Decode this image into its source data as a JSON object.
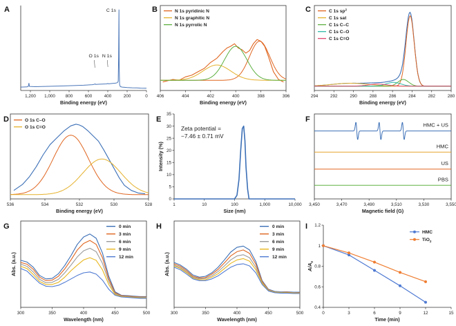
{
  "chart_data": [
    {
      "id": "A",
      "type": "line",
      "panel_label": "A",
      "xlabel": "Binding energy (eV)",
      "ylabel": "",
      "xlim": [
        1300,
        0
      ],
      "xticks": [
        "1,200",
        "1,000",
        "800",
        "600",
        "400",
        "200",
        "0"
      ],
      "annotations": [
        "C 1s",
        "O 1s",
        "N 1s"
      ],
      "series": [
        {
          "name": "survey",
          "color": "#4a76b8",
          "x": [
            1300,
            1235,
            1222,
            1215,
            1210,
            1150,
            1050,
            950,
            850,
            750,
            650,
            560,
            540,
            531,
            525,
            500,
            420,
            405,
            399,
            392,
            360,
            320,
            300,
            292,
            288,
            285,
            284,
            282,
            278,
            270,
            250,
            200,
            150,
            100,
            60,
            20,
            0
          ],
          "y": [
            0.04,
            0.042,
            0.048,
            0.085,
            0.048,
            0.045,
            0.048,
            0.05,
            0.054,
            0.058,
            0.062,
            0.068,
            0.072,
            0.078,
            0.071,
            0.073,
            0.077,
            0.079,
            0.083,
            0.078,
            0.082,
            0.086,
            0.092,
            0.11,
            0.4,
            0.88,
            0.95,
            0.3,
            0.07,
            0.045,
            0.04,
            0.035,
            0.032,
            0.03,
            0.028,
            0.027,
            0.026
          ]
        }
      ]
    },
    {
      "id": "B",
      "type": "line",
      "panel_label": "B",
      "xlabel": "Binding energy (eV)",
      "ylabel": "",
      "xlim": [
        406,
        396
      ],
      "xticks": [
        "406",
        "404",
        "402",
        "400",
        "398",
        "396"
      ],
      "legend": [
        "N 1s pyridinic N",
        "N 1s graphitic N",
        "N 1s pyrrolic N"
      ],
      "background": 0.12,
      "envelope_x": [
        405.8,
        405,
        404.5,
        404,
        403.5,
        403,
        402.5,
        402,
        401.5,
        401,
        400.7,
        400.4,
        400.1,
        399.8,
        399.5,
        399.2,
        398.9,
        398.6,
        398.3,
        398,
        397.7,
        397.4,
        397,
        396.6,
        396.2
      ],
      "envelope_y": [
        0.1,
        0.13,
        0.12,
        0.16,
        0.18,
        0.22,
        0.26,
        0.33,
        0.38,
        0.46,
        0.5,
        0.52,
        0.55,
        0.5,
        0.48,
        0.44,
        0.47,
        0.55,
        0.6,
        0.58,
        0.52,
        0.4,
        0.22,
        0.13,
        0.1
      ],
      "series": [
        {
          "name": "N 1s pyridinic N",
          "color": "#e0651f",
          "center": 398.1,
          "height": 0.46,
          "fwhm": 1.9
        },
        {
          "name": "N 1s graphitic N",
          "color": "#e5b12c",
          "center": 401.5,
          "height": 0.18,
          "fwhm": 2.6
        },
        {
          "name": "N 1s pyrrolic N",
          "color": "#5db040",
          "center": 400.0,
          "height": 0.4,
          "fwhm": 2.1
        }
      ]
    },
    {
      "id": "C",
      "type": "line",
      "panel_label": "C",
      "xlabel": "Binding energy (eV)",
      "ylabel": "",
      "xlim": [
        294,
        280
      ],
      "xticks": [
        "294",
        "292",
        "290",
        "288",
        "286",
        "284",
        "282",
        "280"
      ],
      "legend": [
        "C 1s sp2",
        "C 1s sat",
        "C 1s C–C",
        "C 1s C–O",
        "C 1s C=O"
      ],
      "background": 0.05,
      "series": [
        {
          "name": "C 1s sp2",
          "color": "#e0651f",
          "center": 284.2,
          "height": 0.83,
          "fwhm": 1.0
        },
        {
          "name": "C 1s sat",
          "color": "#e5b12c",
          "center": 290.3,
          "height": 0.035,
          "fwhm": 4.5
        },
        {
          "name": "C 1s C–C",
          "color": "#5db040",
          "center": 284.9,
          "height": 0.08,
          "fwhm": 1.3
        },
        {
          "name": "C 1s C–O",
          "color": "#2fb8a8",
          "center": 285.9,
          "height": 0.045,
          "fwhm": 1.8
        },
        {
          "name": "C 1s C=O",
          "color": "#e0446e",
          "center": 287.5,
          "height": 0.025,
          "fwhm": 2.4
        }
      ]
    },
    {
      "id": "D",
      "type": "line",
      "panel_label": "D",
      "xlabel": "Binding energy (eV)",
      "ylabel": "",
      "xlim": [
        536,
        528
      ],
      "xticks": [
        "536",
        "534",
        "532",
        "530",
        "528"
      ],
      "legend": [
        "O 1s C–O",
        "O 1s C=O"
      ],
      "background": 0.05,
      "envelope_x": [
        535.8,
        535.3,
        534.9,
        534.5,
        534.1,
        533.7,
        533.3,
        532.9,
        532.5,
        532.2,
        532.0,
        531.8,
        531.5,
        531.2,
        530.9,
        530.6,
        530.3,
        530.0,
        529.7,
        529.4,
        529.0,
        528.6,
        528.2
      ],
      "envelope_y": [
        0.1,
        0.17,
        0.26,
        0.38,
        0.52,
        0.64,
        0.72,
        0.8,
        0.86,
        0.88,
        0.87,
        0.85,
        0.8,
        0.74,
        0.68,
        0.58,
        0.47,
        0.36,
        0.25,
        0.16,
        0.1,
        0.07,
        0.06
      ],
      "series": [
        {
          "name": "O 1s C–O",
          "color": "#e0651f",
          "center": 532.5,
          "height": 0.7,
          "fwhm": 2.4
        },
        {
          "name": "O 1s C=O",
          "color": "#e5b12c",
          "center": 530.7,
          "height": 0.42,
          "fwhm": 2.6
        }
      ]
    },
    {
      "id": "E",
      "type": "line",
      "panel_label": "E",
      "xlabel": "Size (nm)",
      "ylabel": "Intensity (%)",
      "xscale": "log",
      "xlim": [
        1,
        10000
      ],
      "ylim": [
        0,
        35
      ],
      "xticks": [
        "1",
        "10",
        "100",
        "1,000",
        "10,000"
      ],
      "yticks": [
        "0",
        "5",
        "10",
        "15",
        "20",
        "25",
        "30",
        "35"
      ],
      "annotation_line1": "Zeta potential =",
      "annotation_line2": "−7.46 ± 0.71 mV",
      "series": [
        {
          "name": "size distribution",
          "color": "#3b6fb6",
          "x": [
            1,
            100,
            120,
            140,
            160,
            180,
            200,
            220,
            240,
            270,
            300,
            10000
          ],
          "y": [
            0,
            0,
            1.5,
            8,
            20,
            29,
            30,
            24,
            13,
            4,
            0,
            0
          ]
        }
      ]
    },
    {
      "id": "F",
      "type": "line",
      "panel_label": "F",
      "xlabel": "Magnetic field (G)",
      "ylabel": "",
      "xlim": [
        3450,
        3550
      ],
      "xticks": [
        "3,450",
        "3,470",
        "3,490",
        "3,510",
        "3,530",
        "3,550"
      ],
      "labels": [
        "HMC + US",
        "HMC",
        "US",
        "PBS"
      ],
      "series": [
        {
          "name": "HMC + US",
          "color": "#3b6fb6",
          "baseline": 0.8,
          "peaks": [
            3481,
            3498,
            3515
          ],
          "amp": 0.075
        },
        {
          "name": "HMC",
          "color": "#e5a32c",
          "baseline": 0.55,
          "peaks": [],
          "amp": 0
        },
        {
          "name": "US",
          "color": "#e0651f",
          "baseline": 0.35,
          "peaks": [],
          "amp": 0
        },
        {
          "name": "PBS",
          "color": "#5db040",
          "baseline": 0.16,
          "peaks": [],
          "amp": 0
        }
      ]
    },
    {
      "id": "G",
      "type": "line",
      "panel_label": "G",
      "xlabel": "Wavelength (nm)",
      "ylabel": "Abs. (a.u.)",
      "xlim": [
        300,
        500
      ],
      "ylim": [
        0,
        2
      ],
      "xticks": [
        "300",
        "350",
        "400",
        "450",
        "500"
      ],
      "yticks": [
        "0",
        "0.5",
        "1",
        "1.5",
        "2"
      ],
      "x": [
        300,
        310,
        320,
        330,
        340,
        350,
        360,
        370,
        380,
        390,
        400,
        410,
        420,
        430,
        440,
        450,
        460,
        470,
        480,
        490,
        500
      ],
      "series": [
        {
          "name": "0 min",
          "color": "#3b6fb6",
          "values": [
            1.09,
            1.05,
            0.93,
            0.74,
            0.66,
            0.67,
            0.78,
            0.97,
            1.2,
            1.46,
            1.63,
            1.7,
            1.6,
            1.26,
            0.72,
            0.36,
            0.28,
            0.27,
            0.26,
            0.25,
            0.25
          ]
        },
        {
          "name": "3 min",
          "color": "#e0651f",
          "values": [
            1.04,
            1.0,
            0.88,
            0.7,
            0.62,
            0.63,
            0.72,
            0.89,
            1.1,
            1.33,
            1.48,
            1.55,
            1.46,
            1.15,
            0.66,
            0.34,
            0.27,
            0.26,
            0.25,
            0.24,
            0.24
          ]
        },
        {
          "name": "6 min",
          "color": "#9a9a9a",
          "values": [
            1.0,
            0.95,
            0.82,
            0.65,
            0.57,
            0.58,
            0.65,
            0.8,
            0.98,
            1.17,
            1.31,
            1.37,
            1.29,
            1.02,
            0.6,
            0.32,
            0.26,
            0.25,
            0.24,
            0.23,
            0.23
          ]
        },
        {
          "name": "9 min",
          "color": "#e8b71e",
          "values": [
            0.95,
            0.9,
            0.76,
            0.6,
            0.53,
            0.53,
            0.58,
            0.7,
            0.85,
            0.98,
            1.1,
            1.15,
            1.09,
            0.87,
            0.53,
            0.3,
            0.25,
            0.24,
            0.23,
            0.22,
            0.22
          ]
        },
        {
          "name": "12 min",
          "color": "#4f7ad2",
          "values": [
            0.9,
            0.84,
            0.7,
            0.56,
            0.49,
            0.48,
            0.51,
            0.58,
            0.66,
            0.74,
            0.8,
            0.82,
            0.77,
            0.63,
            0.42,
            0.28,
            0.24,
            0.23,
            0.22,
            0.21,
            0.21
          ]
        }
      ]
    },
    {
      "id": "H",
      "type": "line",
      "panel_label": "H",
      "xlabel": "Wavelength (nm)",
      "ylabel": "Abs. (a.u.)",
      "xlim": [
        300,
        500
      ],
      "ylim": [
        0,
        2
      ],
      "xticks": [
        "300",
        "350",
        "400",
        "450",
        "500"
      ],
      "yticks": [
        "0",
        "0.5",
        "1",
        "1.5",
        "2"
      ],
      "x": [
        300,
        310,
        320,
        330,
        340,
        350,
        360,
        370,
        380,
        390,
        400,
        410,
        420,
        430,
        440,
        450,
        460,
        470,
        480,
        490,
        500
      ],
      "series": [
        {
          "name": "0 min",
          "color": "#3b6fb6",
          "values": [
            1.04,
            0.98,
            0.88,
            0.75,
            0.7,
            0.72,
            0.8,
            0.93,
            1.1,
            1.28,
            1.39,
            1.42,
            1.33,
            1.06,
            0.62,
            0.42,
            0.37,
            0.36,
            0.36,
            0.35,
            0.35
          ]
        },
        {
          "name": "3 min",
          "color": "#e0651f",
          "values": [
            1.01,
            0.95,
            0.85,
            0.72,
            0.68,
            0.69,
            0.77,
            0.88,
            1.03,
            1.19,
            1.29,
            1.33,
            1.25,
            1.0,
            0.6,
            0.41,
            0.36,
            0.35,
            0.35,
            0.34,
            0.34
          ]
        },
        {
          "name": "6 min",
          "color": "#9a9a9a",
          "values": [
            0.98,
            0.92,
            0.82,
            0.7,
            0.66,
            0.67,
            0.73,
            0.83,
            0.96,
            1.1,
            1.19,
            1.22,
            1.15,
            0.93,
            0.58,
            0.4,
            0.36,
            0.35,
            0.34,
            0.34,
            0.33
          ]
        },
        {
          "name": "9 min",
          "color": "#e8b71e",
          "values": [
            0.96,
            0.9,
            0.8,
            0.68,
            0.64,
            0.64,
            0.7,
            0.78,
            0.9,
            1.02,
            1.1,
            1.13,
            1.07,
            0.87,
            0.56,
            0.39,
            0.35,
            0.34,
            0.34,
            0.33,
            0.33
          ]
        },
        {
          "name": "12 min",
          "color": "#4f7ad2",
          "values": [
            0.93,
            0.87,
            0.77,
            0.66,
            0.62,
            0.62,
            0.66,
            0.73,
            0.83,
            0.93,
            0.99,
            1.01,
            0.96,
            0.8,
            0.53,
            0.38,
            0.34,
            0.33,
            0.33,
            0.32,
            0.32
          ]
        }
      ]
    },
    {
      "id": "I",
      "type": "line",
      "panel_label": "I",
      "xlabel": "Time (min)",
      "ylabel": "A/A0",
      "xlim": [
        0,
        15
      ],
      "ylim": [
        0.4,
        1.2
      ],
      "xticks": [
        "0",
        "3",
        "6",
        "9",
        "12",
        "15"
      ],
      "yticks": [
        "0.4",
        "0.6",
        "0.8",
        "1",
        "1.2"
      ],
      "x": [
        0,
        3,
        6,
        9,
        12
      ],
      "legend": [
        "HMC",
        "TiO2"
      ],
      "series": [
        {
          "name": "HMC",
          "color": "#4f7ad2",
          "marker": "circle",
          "values": [
            1.0,
            0.91,
            0.76,
            0.61,
            0.45
          ]
        },
        {
          "name": "TiO2",
          "color": "#ef7d31",
          "marker": "circle",
          "values": [
            1.0,
            0.93,
            0.84,
            0.74,
            0.65
          ]
        }
      ]
    }
  ]
}
